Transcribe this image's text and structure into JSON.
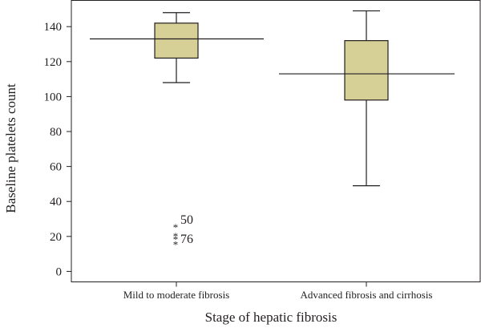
{
  "chart_data": {
    "type": "boxplot",
    "xlabel": "Stage of hepatic fibrosis",
    "ylabel": "Baseline platelets count",
    "ylim": [
      -6,
      155
    ],
    "yticks": [
      0,
      20,
      40,
      60,
      80,
      100,
      120,
      140
    ],
    "grid": false,
    "legend": "none",
    "box_fill": "#d6cf96",
    "line_color": "#231f20",
    "categories": [
      "Mild to moderate fibrosis",
      "Advanced fibrosis and cirrhosis"
    ],
    "boxes": [
      {
        "category": "Mild to moderate fibrosis",
        "whisker_low": 108,
        "q1": 122,
        "median": 133,
        "q3": 142,
        "whisker_high": 148,
        "outliers": [
          {
            "label": "50",
            "value": 25
          },
          {
            "label": "76",
            "value": 20
          },
          {
            "label": "",
            "value": 18
          },
          {
            "label": "",
            "value": 15
          }
        ]
      },
      {
        "category": "Advanced fibrosis and cirrhosis",
        "whisker_low": 49,
        "q1": 98,
        "median": 113,
        "q3": 132,
        "whisker_high": 149,
        "outliers": []
      }
    ]
  }
}
